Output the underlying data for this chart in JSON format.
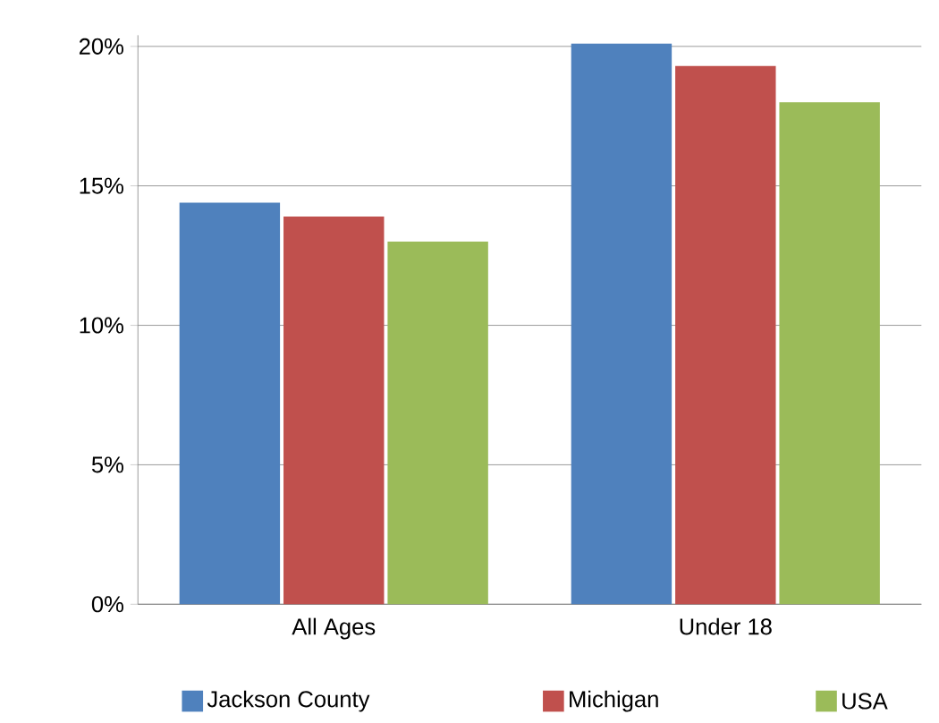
{
  "chart_data": {
    "type": "bar",
    "categories": [
      "All Ages",
      "Under 18"
    ],
    "series": [
      {
        "name": "Jackson County",
        "color": "#4f81bd",
        "values": [
          14.4,
          20.1
        ]
      },
      {
        "name": "Michigan",
        "color": "#c0504d",
        "values": [
          13.9,
          19.3
        ]
      },
      {
        "name": "USA",
        "color": "#9bbb59",
        "values": [
          13.0,
          18.0
        ]
      }
    ],
    "ylim": [
      0,
      20.4
    ],
    "yticks": [
      {
        "value": 0,
        "label": "0%"
      },
      {
        "value": 5,
        "label": "5%"
      },
      {
        "value": 10,
        "label": "10%"
      },
      {
        "value": 15,
        "label": "15%"
      },
      {
        "value": 20,
        "label": "20%"
      }
    ],
    "grid": "y",
    "legend": "bottom"
  }
}
